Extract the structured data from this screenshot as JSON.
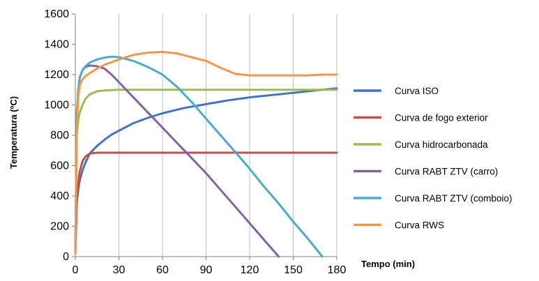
{
  "chart_data": {
    "type": "line",
    "xlabel": "Tempo (min)",
    "ylabel": "Temperatura (ºC)",
    "xlim": [
      0,
      180
    ],
    "ylim": [
      0,
      1600
    ],
    "xticks": [
      0,
      30,
      60,
      90,
      120,
      150,
      180
    ],
    "yticks": [
      0,
      200,
      400,
      600,
      800,
      1000,
      1200,
      1400,
      1600
    ],
    "grid": "vertical",
    "legend_position": "right",
    "series": [
      {
        "name": "Curva ISO",
        "color": "#4472C4",
        "x": [
          0,
          1,
          2,
          3,
          5,
          7,
          10,
          15,
          20,
          25,
          30,
          40,
          50,
          60,
          75,
          90,
          105,
          120,
          135,
          150,
          165,
          180
        ],
        "y": [
          20,
          350,
          440,
          500,
          570,
          620,
          680,
          730,
          770,
          805,
          830,
          880,
          915,
          945,
          980,
          1005,
          1030,
          1050,
          1065,
          1080,
          1095,
          1110
        ]
      },
      {
        "name": "Curva de fogo exterior",
        "color": "#C0504D",
        "x": [
          0,
          1,
          2,
          3,
          5,
          7,
          10,
          15,
          20,
          30,
          60,
          90,
          120,
          150,
          180
        ],
        "y": [
          20,
          380,
          480,
          560,
          630,
          660,
          680,
          685,
          685,
          685,
          685,
          685,
          685,
          685,
          685
        ]
      },
      {
        "name": "Curva hidrocarbonada",
        "color": "#9BBB59",
        "x": [
          0,
          1,
          2,
          3,
          5,
          7,
          10,
          15,
          20,
          25,
          30,
          60,
          90,
          120,
          150,
          180
        ],
        "y": [
          20,
          800,
          900,
          950,
          1000,
          1040,
          1070,
          1090,
          1095,
          1098,
          1100,
          1100,
          1100,
          1100,
          1100,
          1100
        ]
      },
      {
        "name": "Curva RABT ZTV (carro)",
        "color": "#8064A2",
        "x": [
          0,
          1,
          2,
          3,
          5,
          7,
          10,
          15,
          20,
          25,
          30,
          40,
          50,
          60,
          70,
          80,
          90,
          100,
          110,
          120,
          130,
          140
        ],
        "y": [
          20,
          900,
          1100,
          1180,
          1230,
          1250,
          1260,
          1255,
          1240,
          1200,
          1150,
          1050,
          950,
          850,
          750,
          650,
          550,
          440,
          330,
          220,
          110,
          0
        ]
      },
      {
        "name": "Curva RABT ZTV (comboio)",
        "color": "#4BACC6",
        "x": [
          0,
          1,
          2,
          3,
          5,
          7,
          10,
          15,
          20,
          25,
          30,
          40,
          50,
          60,
          70,
          80,
          90,
          100,
          110,
          120,
          130,
          140,
          150,
          160,
          170
        ],
        "y": [
          20,
          950,
          1100,
          1180,
          1230,
          1255,
          1280,
          1300,
          1312,
          1318,
          1315,
          1290,
          1250,
          1200,
          1120,
          1020,
          910,
          800,
          690,
          580,
          460,
          350,
          230,
          120,
          0
        ]
      },
      {
        "name": "Curva RWS",
        "color": "#F79646",
        "x": [
          0,
          1,
          2,
          3,
          5,
          7,
          10,
          15,
          20,
          30,
          40,
          50,
          60,
          70,
          80,
          90,
          100,
          110,
          120,
          130,
          140,
          150,
          160,
          170,
          180
        ],
        "y": [
          20,
          850,
          1050,
          1130,
          1170,
          1190,
          1210,
          1240,
          1265,
          1300,
          1330,
          1345,
          1350,
          1340,
          1315,
          1290,
          1245,
          1205,
          1195,
          1195,
          1195,
          1195,
          1195,
          1200,
          1200
        ]
      }
    ]
  }
}
